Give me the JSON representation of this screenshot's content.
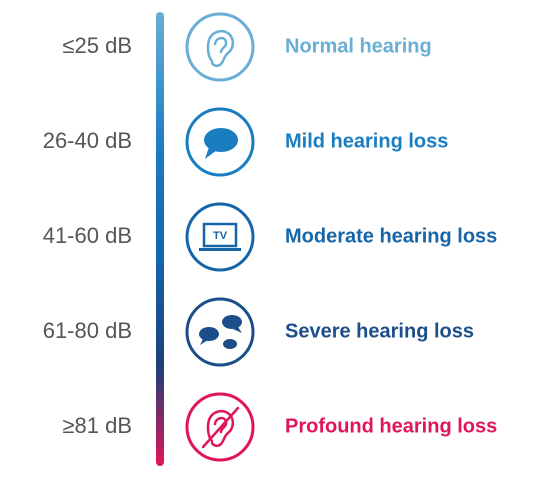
{
  "levels": [
    {
      "range": "≤25 dB",
      "label": "Normal hearing"
    },
    {
      "range": "26-40 dB",
      "label": "Mild hearing loss"
    },
    {
      "range": "41-60 dB",
      "label": "Moderate hearing loss",
      "icon_text": "TV"
    },
    {
      "range": "61-80 dB",
      "label": "Severe hearing loss"
    },
    {
      "range": "≥81 dB",
      "label": "Profound hearing loss"
    }
  ]
}
